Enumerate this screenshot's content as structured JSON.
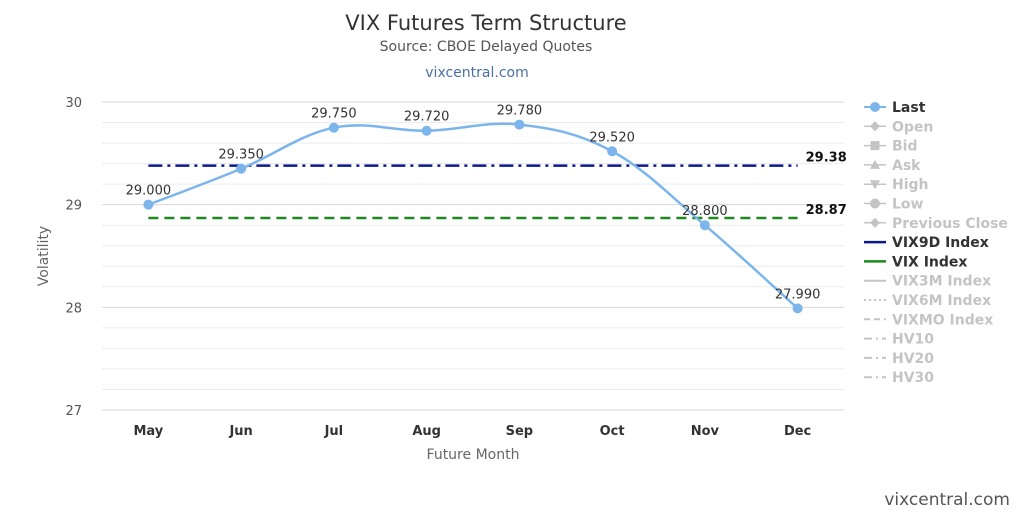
{
  "chart_data": {
    "type": "line",
    "title": "VIX Futures Term Structure",
    "subtitle": "Source: CBOE Delayed Quotes",
    "link": "vixcentral.com",
    "watermark": "vixcentral.com",
    "xlabel": "Future Month",
    "ylabel": "Volatility",
    "categories": [
      "May",
      "Jun",
      "Jul",
      "Aug",
      "Sep",
      "Oct",
      "Nov",
      "Dec"
    ],
    "ylim": [
      27,
      30
    ],
    "yticks": [
      "27",
      "28",
      "29",
      "30"
    ],
    "grid": true,
    "series": [
      {
        "name": "Last",
        "values": [
          29.0,
          29.35,
          29.75,
          29.72,
          29.78,
          29.52,
          28.8,
          27.99
        ],
        "labels": [
          "29.000",
          "29.350",
          "29.750",
          "29.720",
          "29.780",
          "29.520",
          "28.800",
          "27.990"
        ],
        "color": "#7cb5ec"
      }
    ],
    "reference_lines": [
      {
        "name": "VIX9D Index",
        "value": 29.38,
        "label": "29.38",
        "color": "#0d1a8c",
        "style": "dash-dot"
      },
      {
        "name": "VIX Index",
        "value": 28.87,
        "label": "28.87",
        "color": "#1e8a1e",
        "style": "dash"
      }
    ],
    "legend": {
      "placement": "right",
      "items": [
        {
          "name": "Last",
          "active": true,
          "color": "#7cb5ec",
          "symbol": "circle-line"
        },
        {
          "name": "Open",
          "active": false,
          "symbol": "diamond"
        },
        {
          "name": "Bid",
          "active": false,
          "symbol": "square"
        },
        {
          "name": "Ask",
          "active": false,
          "symbol": "triangle"
        },
        {
          "name": "High",
          "active": false,
          "symbol": "triangle-down"
        },
        {
          "name": "Low",
          "active": false,
          "symbol": "circle"
        },
        {
          "name": "Previous Close",
          "active": false,
          "symbol": "diamond"
        },
        {
          "name": "VIX9D Index",
          "active": true,
          "color": "#0d1a8c",
          "symbol": "line"
        },
        {
          "name": "VIX Index",
          "active": true,
          "color": "#1e8a1e",
          "symbol": "line"
        },
        {
          "name": "VIX3M Index",
          "active": false,
          "symbol": "line"
        },
        {
          "name": "VIX6M Index",
          "active": false,
          "symbol": "dotted"
        },
        {
          "name": "VIXMO Index",
          "active": false,
          "symbol": "dashed"
        },
        {
          "name": "HV10",
          "active": false,
          "symbol": "dash-dot"
        },
        {
          "name": "HV20",
          "active": false,
          "symbol": "dash-dot"
        },
        {
          "name": "HV30",
          "active": false,
          "symbol": "dash-dot"
        }
      ]
    }
  }
}
